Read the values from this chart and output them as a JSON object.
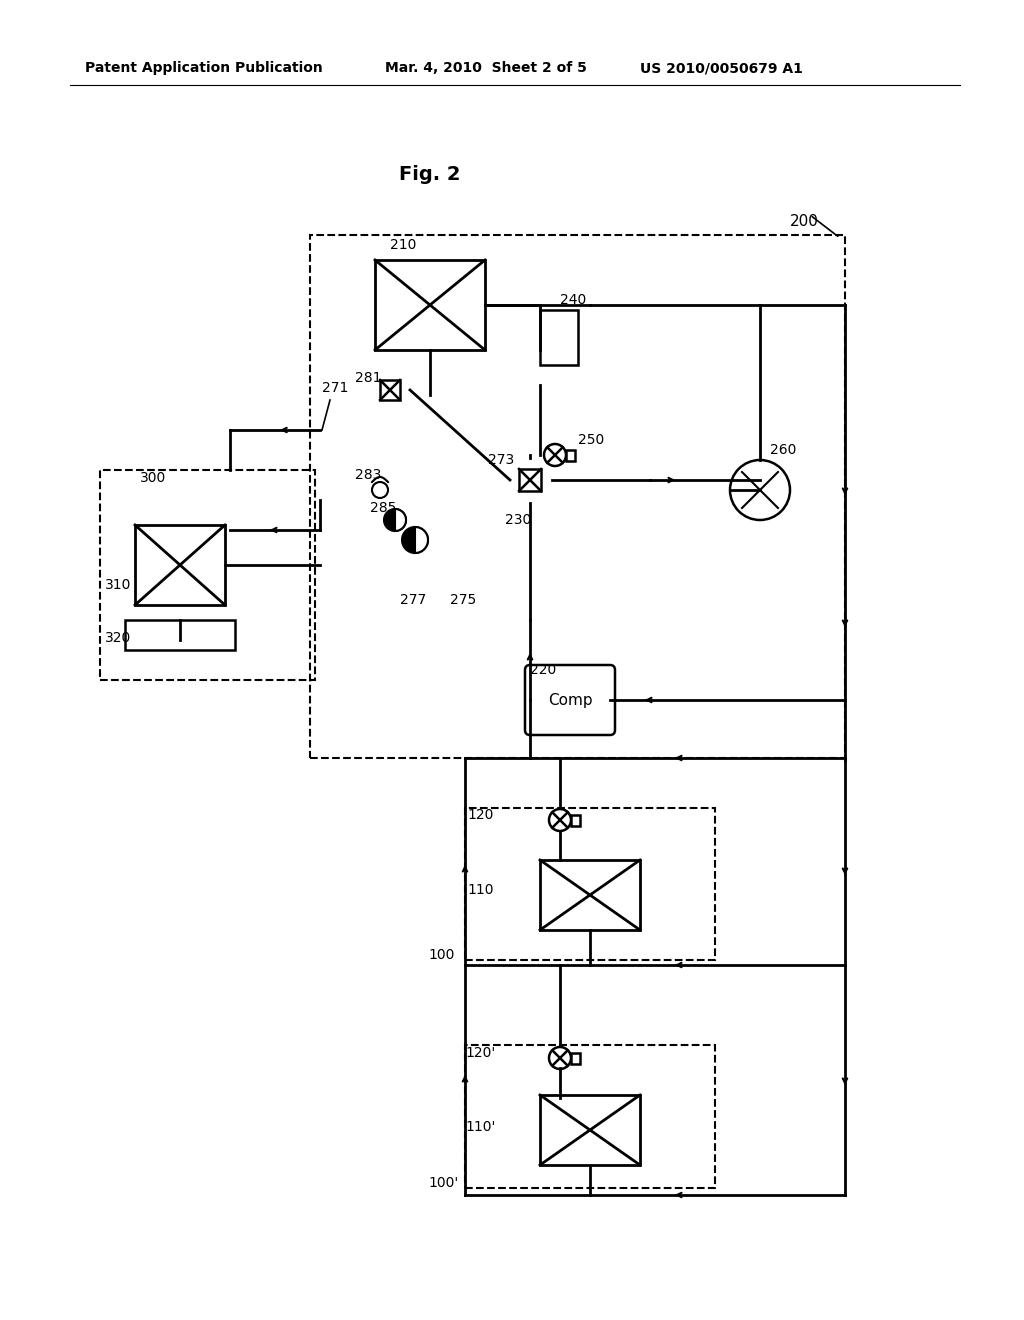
{
  "title": "Fig. 2",
  "header_left": "Patent Application Publication",
  "header_mid": "Mar. 4, 2010  Sheet 2 of 5",
  "header_right": "US 2010/0050679 A1",
  "bg_color": "#ffffff",
  "line_color": "#000000",
  "dashed_color": "#555555"
}
